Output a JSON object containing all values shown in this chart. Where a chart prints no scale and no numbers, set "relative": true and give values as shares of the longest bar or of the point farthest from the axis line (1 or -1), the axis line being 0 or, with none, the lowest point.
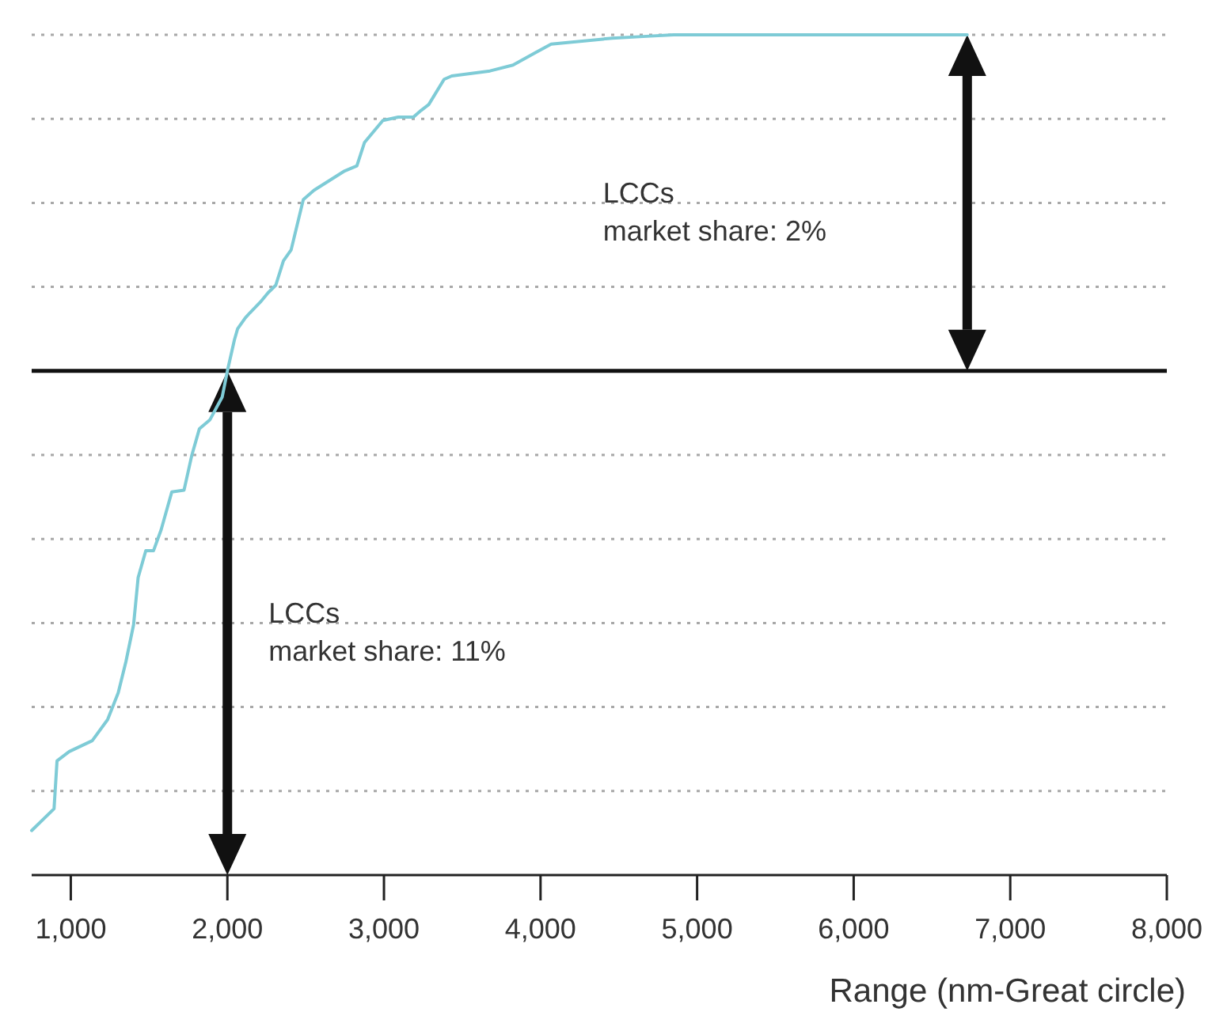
{
  "chart_data": {
    "type": "line",
    "relative": true,
    "xlabel": "Range (nm-Great circle)",
    "xlim": [
      750,
      8000
    ],
    "xticks": [
      {
        "value": 1000,
        "label": "1,000"
      },
      {
        "value": 2000,
        "label": "2,000"
      },
      {
        "value": 3000,
        "label": "3,000"
      },
      {
        "value": 4000,
        "label": "4,000"
      },
      {
        "value": 5000,
        "label": "5,000"
      },
      {
        "value": 6000,
        "label": "6,000"
      },
      {
        "value": 7000,
        "label": "7,000"
      },
      {
        "value": 8000,
        "label": "8,000"
      }
    ],
    "grid": "y",
    "marker": "none",
    "line_style": "solid",
    "series": [
      {
        "color": "#7ecbd6",
        "x": [
          750,
          893,
          912,
          990,
          1137,
          1235,
          1303,
          1352,
          1401,
          1430,
          1479,
          1528,
          1577,
          1645,
          1723,
          1772,
          1821,
          1889,
          1967,
          2000,
          2045,
          2065,
          2114,
          2143,
          2211,
          2260,
          2309,
          2358,
          2407,
          2485,
          2553,
          2749,
          2827,
          2876,
          2993,
          3091,
          3188,
          3237,
          3286,
          3384,
          3433,
          3677,
          3824,
          3970,
          4068,
          4459,
          4654,
          4850,
          6725
        ],
        "values": [
          0.053,
          0.079,
          0.136,
          0.147,
          0.16,
          0.185,
          0.217,
          0.254,
          0.298,
          0.354,
          0.386,
          0.386,
          0.411,
          0.456,
          0.458,
          0.499,
          0.531,
          0.542,
          0.569,
          0.6,
          0.637,
          0.65,
          0.663,
          0.669,
          0.682,
          0.693,
          0.702,
          0.731,
          0.744,
          0.804,
          0.815,
          0.838,
          0.844,
          0.872,
          0.898,
          0.902,
          0.902,
          0.91,
          0.917,
          0.947,
          0.951,
          0.957,
          0.964,
          0.979,
          0.989,
          0.996,
          0.998,
          1,
          1
        ]
      }
    ],
    "ref_lines": [
      {
        "axis": "y",
        "value": 0.6,
        "color": "#111111",
        "line_style": "solid"
      }
    ],
    "annotations": [
      "LCCs\nmarket share: 11%",
      "LCCs\nmarket share: 2%"
    ]
  }
}
